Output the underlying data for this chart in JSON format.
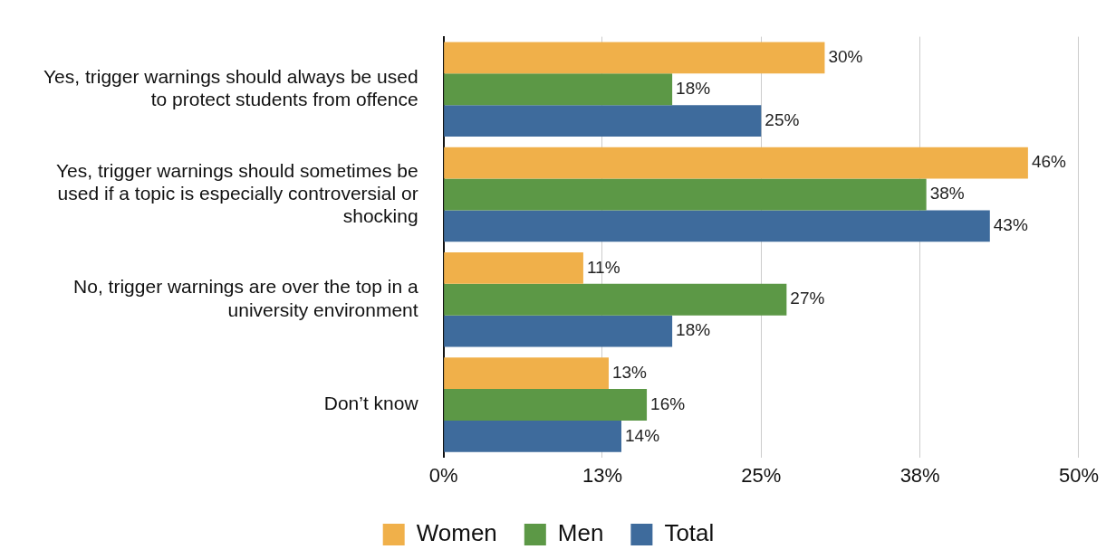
{
  "chart_data": {
    "type": "bar",
    "orientation": "horizontal",
    "categories": [
      "Yes, trigger warnings should always be used to protect students from offence",
      "Yes, trigger warnings should sometimes be used if a topic is especially controversial or shocking",
      "No, trigger warnings are over the top in a university environment",
      "Don’t know"
    ],
    "series": [
      {
        "name": "Women",
        "color": "#f0b04a",
        "values": [
          30,
          46,
          11,
          13
        ],
        "value_labels": [
          "30%",
          "46%",
          "11%",
          "13%"
        ]
      },
      {
        "name": "Men",
        "color": "#5c9846",
        "values": [
          18,
          38,
          27,
          16
        ],
        "value_labels": [
          "18%",
          "38%",
          "27%",
          "16%"
        ]
      },
      {
        "name": "Total",
        "color": "#3e6b9c",
        "values": [
          25,
          43,
          18,
          14
        ],
        "value_labels": [
          "25%",
          "43%",
          "18%",
          "14%"
        ]
      }
    ],
    "xlim": [
      0,
      50
    ],
    "xticks": [
      {
        "value": 0,
        "label": "0%"
      },
      {
        "value": 12.5,
        "label": "13%"
      },
      {
        "value": 25,
        "label": "25%"
      },
      {
        "value": 37.5,
        "label": "38%"
      },
      {
        "value": 50,
        "label": "50%"
      }
    ],
    "grid": "x",
    "legend": "bottom"
  }
}
